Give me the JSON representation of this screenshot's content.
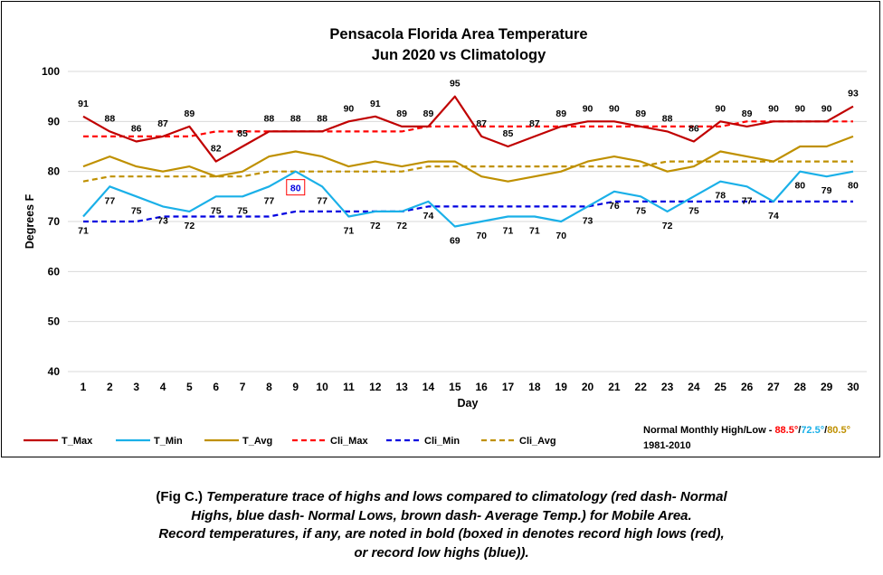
{
  "chart_data": {
    "type": "line",
    "title_line1": "Pensacola Florida Area Temperature",
    "title_line2": "Jun 2020 vs Climatology",
    "xlabel": "Day",
    "ylabel": "Degrees F",
    "ylim": [
      40,
      100
    ],
    "yticks": [
      40,
      50,
      60,
      70,
      80,
      90,
      100
    ],
    "x": [
      1,
      2,
      3,
      4,
      5,
      6,
      7,
      8,
      9,
      10,
      11,
      12,
      13,
      14,
      15,
      16,
      17,
      18,
      19,
      20,
      21,
      22,
      23,
      24,
      25,
      26,
      27,
      28,
      29,
      30
    ],
    "grid": true,
    "series": [
      {
        "name": "T_Max",
        "color": "#c00000",
        "dash": false,
        "labels": "above",
        "values": [
          91,
          88,
          86,
          87,
          89,
          82,
          85,
          88,
          88,
          88,
          90,
          91,
          89,
          89,
          95,
          87,
          85,
          87,
          89,
          90,
          90,
          89,
          88,
          86,
          90,
          89,
          90,
          90,
          90,
          93
        ]
      },
      {
        "name": "T_Min",
        "color": "#1ab0e8",
        "dash": false,
        "labels": "below",
        "values": [
          71,
          77,
          75,
          73,
          72,
          75,
          75,
          77,
          80,
          77,
          71,
          72,
          72,
          74,
          69,
          70,
          71,
          71,
          70,
          73,
          76,
          75,
          72,
          75,
          78,
          77,
          74,
          80,
          79,
          80
        ]
      },
      {
        "name": "T_Avg",
        "color": "#bf9000",
        "dash": false,
        "labels": "none",
        "values": [
          81,
          83,
          81,
          80,
          81,
          79,
          80,
          83,
          84,
          83,
          81,
          82,
          81,
          82,
          82,
          79,
          78,
          79,
          80,
          82,
          83,
          82,
          80,
          81,
          84,
          83,
          82,
          85,
          85,
          87
        ]
      },
      {
        "name": "Cli_Max",
        "color": "#ff0000",
        "dash": true,
        "labels": "none",
        "values": [
          87,
          87,
          87,
          87,
          87,
          88,
          88,
          88,
          88,
          88,
          88,
          88,
          88,
          89,
          89,
          89,
          89,
          89,
          89,
          89,
          89,
          89,
          89,
          89,
          89,
          90,
          90,
          90,
          90,
          90
        ]
      },
      {
        "name": "Cli_Min",
        "color": "#0000e0",
        "dash": true,
        "labels": "none",
        "values": [
          70,
          70,
          70,
          71,
          71,
          71,
          71,
          71,
          72,
          72,
          72,
          72,
          72,
          73,
          73,
          73,
          73,
          73,
          73,
          73,
          74,
          74,
          74,
          74,
          74,
          74,
          74,
          74,
          74,
          74
        ]
      },
      {
        "name": "Cli_Avg",
        "color": "#bf9000",
        "dash": true,
        "labels": "none",
        "values": [
          78,
          79,
          79,
          79,
          79,
          79,
          79,
          80,
          80,
          80,
          80,
          80,
          80,
          81,
          81,
          81,
          81,
          81,
          81,
          81,
          81,
          81,
          82,
          82,
          82,
          82,
          82,
          82,
          82,
          82
        ]
      }
    ],
    "record_box": {
      "day": 9,
      "value": "80",
      "text_color": "#0000e0",
      "border_color": "#ff0000"
    },
    "legend": {
      "placement": "bottom",
      "normals_label": "Normal Monthly High/Low - ",
      "normal_high": "88.5°",
      "normal_high_color": "#ff0000",
      "separator": "/",
      "normal_low": "72.5°",
      "normal_low_color": "#1ab0e8",
      "normal_avg": "80.5°",
      "normal_avg_color": "#bf9000",
      "period": "1981-2010"
    }
  },
  "caption": {
    "line1_prefix": "(Fig C.) ",
    "line1": "Temperature trace of highs and lows compared to climatology (red dash- Normal",
    "line2": "Highs, blue dash- Normal Lows, brown dash- Average Temp.) for Mobile Area.",
    "line3": "Record temperatures, if any, are noted in bold (boxed in denotes record high lows (red),",
    "line4": "or record low highs (blue))."
  }
}
